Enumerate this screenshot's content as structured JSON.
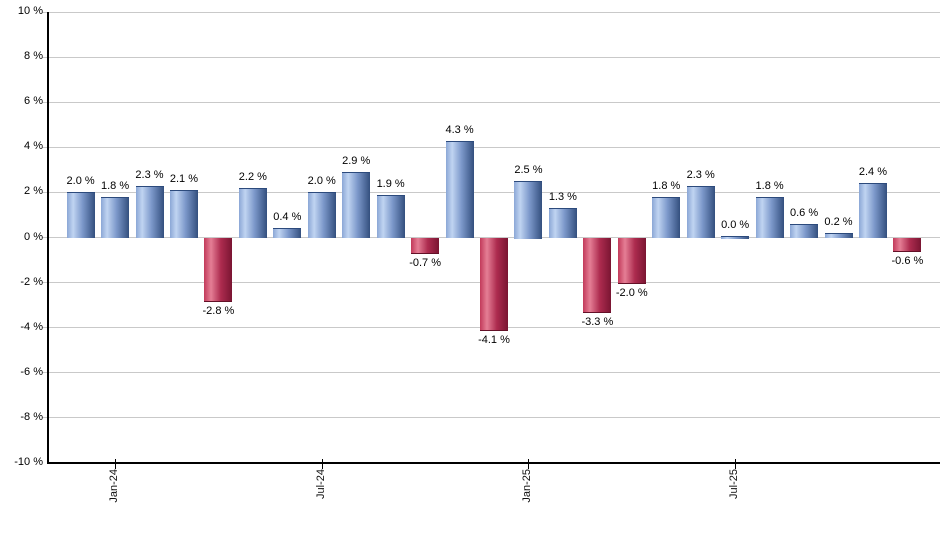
{
  "chart_data": {
    "type": "bar",
    "values": [
      2.0,
      1.8,
      2.3,
      2.1,
      -2.8,
      2.2,
      0.4,
      2.0,
      2.9,
      1.9,
      -0.7,
      4.3,
      -4.1,
      2.5,
      1.3,
      -3.3,
      -2.0,
      1.8,
      2.3,
      0.0,
      1.8,
      0.6,
      0.2,
      2.4,
      -0.6
    ],
    "bar_labels": [
      "2.0 %",
      "1.8 %",
      "2.3 %",
      "2.1 %",
      "-2.8 %",
      "2.2 %",
      "0.4 %",
      "2.0 %",
      "2.9 %",
      "1.9 %",
      "-0.7 %",
      "4.3 %",
      "-4.1 %",
      "2.5 %",
      "1.3 %",
      "-3.3 %",
      "-2.0 %",
      "1.8 %",
      "2.3 %",
      "0.0 %",
      "1.8 %",
      "0.6 %",
      "0.2 %",
      "2.4 %",
      "-0.6 %"
    ],
    "yticks": [
      {
        "value": 10,
        "label": "10 %"
      },
      {
        "value": 8,
        "label": "8 %"
      },
      {
        "value": 6,
        "label": "6 %"
      },
      {
        "value": 4,
        "label": "4 %"
      },
      {
        "value": 2,
        "label": "2 %"
      },
      {
        "value": 0,
        "label": "0 %"
      },
      {
        "value": -2,
        "label": "-2 %"
      },
      {
        "value": -4,
        "label": "-4 %"
      },
      {
        "value": -6,
        "label": "-6 %"
      },
      {
        "value": -8,
        "label": "-8 %"
      },
      {
        "value": -10,
        "label": "-10 %"
      }
    ],
    "xticks": [
      {
        "bar_index": 1,
        "label": "Jan-24"
      },
      {
        "bar_index": 7,
        "label": "Jul-24"
      },
      {
        "bar_index": 13,
        "label": "Jan-25"
      },
      {
        "bar_index": 19,
        "label": "Jul-25"
      }
    ],
    "ylim": [
      -10,
      10
    ],
    "grid": true,
    "legend_position": "none",
    "colors": {
      "positive_gradient": [
        "#8ba7d6",
        "#c0d4f1",
        "#7d99cb",
        "#334f7e"
      ],
      "negative_gradient": [
        "#c23a5a",
        "#e57e95",
        "#ad2c4f",
        "#7a1532"
      ],
      "gridline": "#c9c9c9",
      "axis": "#000000",
      "label_text": "#000000",
      "background": "#ffffff"
    }
  }
}
